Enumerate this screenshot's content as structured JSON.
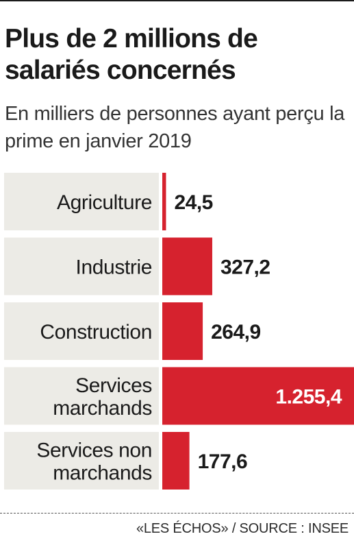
{
  "header": {
    "title": "Plus de 2 millions de salariés concernés",
    "subtitle": "En milliers de personnes ayant perçu la prime en janvier 2019"
  },
  "colors": {
    "bar": "#d6222e",
    "label_background": "#ecebe6",
    "text": "#1a1a1a",
    "value_inside_bar": "#ffffff"
  },
  "chart_data": {
    "type": "bar",
    "orientation": "horizontal",
    "title": "Plus de 2 millions de salariés concernés",
    "subtitle": "En milliers de personnes ayant perçu la prime en janvier 2019",
    "categories": [
      [
        "Agriculture"
      ],
      [
        "Industrie"
      ],
      [
        "Construction"
      ],
      [
        "Services",
        "marchands"
      ],
      [
        "Services non",
        "marchands"
      ]
    ],
    "values": [
      24.5,
      327.2,
      264.9,
      1255.4,
      177.6
    ],
    "value_labels": [
      "24,5",
      "327,2",
      "264,9",
      "1.255,4",
      "177,6"
    ],
    "xlim": [
      0,
      1255.4
    ],
    "grid": false,
    "legend": "none"
  },
  "footer": {
    "source": "«LES ÉCHOS» / SOURCE : INSEE"
  }
}
